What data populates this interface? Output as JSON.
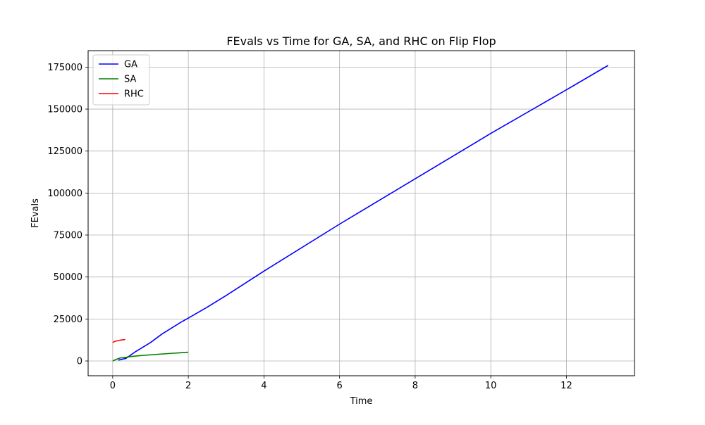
{
  "chart_data": {
    "type": "line",
    "title": "FEvals vs Time for GA, SA, and RHC on Flip Flop",
    "xlabel": "Time",
    "ylabel": "FEvals",
    "xlim": [
      -0.65,
      13.8
    ],
    "ylim": [
      -8800,
      184800
    ],
    "xticks": [
      0,
      2,
      4,
      6,
      8,
      10,
      12
    ],
    "yticks": [
      0,
      25000,
      50000,
      75000,
      100000,
      125000,
      150000,
      175000
    ],
    "grid": true,
    "legend_position": "top-left",
    "series": [
      {
        "name": "GA",
        "color": "#0000ff",
        "points": [
          [
            0.15,
            500
          ],
          [
            0.35,
            1500
          ],
          [
            0.6,
            5500
          ],
          [
            1.0,
            11000
          ],
          [
            1.3,
            16000
          ],
          [
            1.8,
            23000
          ],
          [
            2.0,
            25500
          ],
          [
            2.5,
            32000
          ],
          [
            3.0,
            39000
          ],
          [
            4.0,
            53500
          ],
          [
            6.0,
            81500
          ],
          [
            8.0,
            108500
          ],
          [
            10.0,
            135500
          ],
          [
            12.0,
            161500
          ],
          [
            13.1,
            176000
          ]
        ]
      },
      {
        "name": "SA",
        "color": "#008000",
        "points": [
          [
            0.0,
            0
          ],
          [
            0.1,
            1000
          ],
          [
            0.2,
            1800
          ],
          [
            0.3,
            2000
          ],
          [
            0.5,
            2700
          ],
          [
            0.8,
            3300
          ],
          [
            1.2,
            4000
          ],
          [
            1.6,
            4600
          ],
          [
            2.0,
            5200
          ]
        ]
      },
      {
        "name": "RHC",
        "color": "#ff0000",
        "points": [
          [
            0.0,
            11000
          ],
          [
            0.05,
            11600
          ],
          [
            0.1,
            11900
          ],
          [
            0.2,
            12400
          ],
          [
            0.33,
            12800
          ]
        ]
      }
    ]
  }
}
